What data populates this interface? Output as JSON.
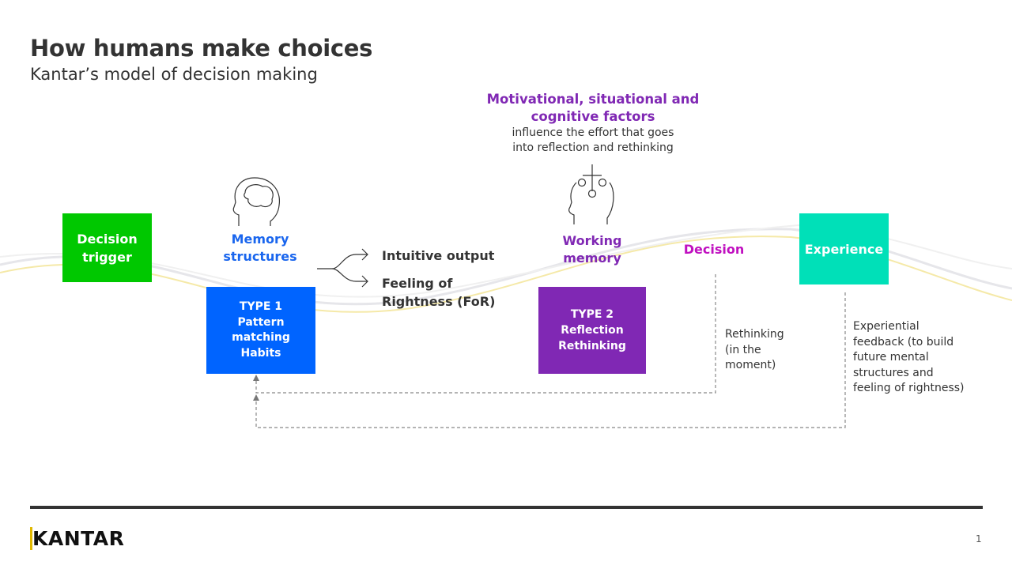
{
  "header": {
    "title": "How humans make choices",
    "subtitle": "Kantar’s model of decision making"
  },
  "diagram": {
    "trigger": "Decision\ntrigger",
    "memory_label": "Memory\nstructures",
    "type1": "TYPE 1\nPattern\nmatching\nHabits",
    "outputs": {
      "intuitive": "Intuitive output",
      "for": "Feeling of\nRightness (FoR)"
    },
    "factors": {
      "heading": "Motivational, situational and cognitive factors",
      "body": "influence the effort that goes\ninto reflection and rethinking"
    },
    "working_label": "Working\nmemory",
    "type2": "TYPE 2\nReflection\nRethinking",
    "decision": "Decision",
    "experience": "Experience",
    "rethinking_note": "Rethinking\n(in the\nmoment)",
    "feedback_note": "Experiential\nfeedback (to build\nfuture mental\nstructures and\nfeeling of rightness)"
  },
  "colors": {
    "trigger": "#00c800",
    "type1": "#0064ff",
    "type2": "#8028b4",
    "experience": "#00e0b8",
    "decision": "#c010c0",
    "memory": "#1a66ee"
  },
  "icons": [
    "brain-head-icon",
    "thinking-head-icon"
  ],
  "footer": {
    "logo": "KANTAR",
    "page_number": "1"
  }
}
